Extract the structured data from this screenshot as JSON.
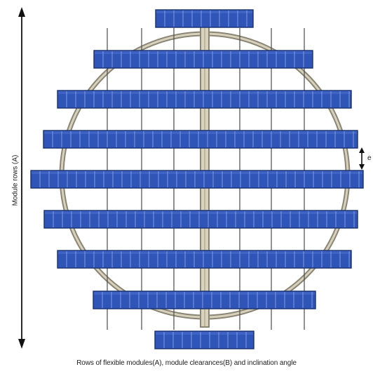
{
  "diagram": {
    "vertical_axis_label": "Module rows (A)",
    "clearance_label": "e",
    "caption": "Rows of flexible modules(A), module clearances(B) and inclination angle"
  },
  "colors": {
    "module_fill": "#2f55b8",
    "module_border": "#18306f",
    "module_cell_divider": "#7f9be0",
    "ring_outer": "#8a8574",
    "ring_inner": "#cfc9b4",
    "support_lines": "#4a4a4a",
    "axis_arrow": "#111111"
  }
}
